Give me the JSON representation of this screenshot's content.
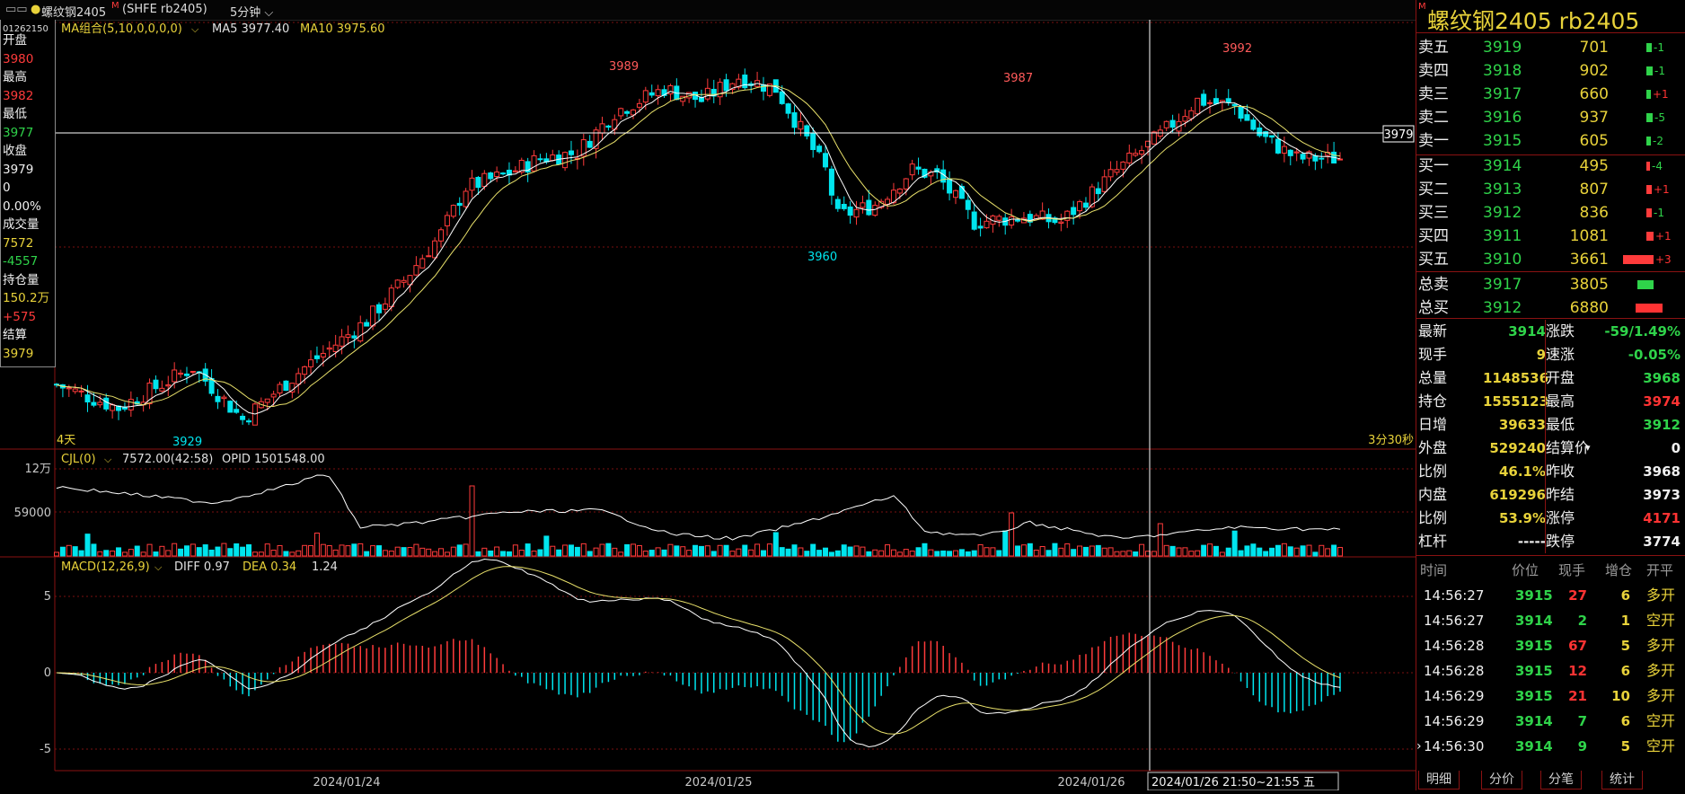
{
  "topbar": {
    "window_icons": "▭▭",
    "symbol": "螺纹钢2405",
    "symbol_mark": "M",
    "code": "(SHFE rb2405)",
    "period": "5分钟"
  },
  "left": {
    "code": "01262150",
    "labels": [
      {
        "t": "开盘",
        "c": "white"
      },
      {
        "t": "3980",
        "c": "red"
      },
      {
        "t": "最高",
        "c": "white"
      },
      {
        "t": "3982",
        "c": "red"
      },
      {
        "t": "最低",
        "c": "white"
      },
      {
        "t": "3977",
        "c": "green"
      },
      {
        "t": "收盘",
        "c": "white"
      },
      {
        "t": "3979",
        "c": "white"
      },
      {
        "t": "0",
        "c": "white"
      },
      {
        "t": "0.00%",
        "c": "white"
      },
      {
        "t": "成交量",
        "c": "white"
      },
      {
        "t": "7572",
        "c": "yellow"
      },
      {
        "t": "-4557",
        "c": "green"
      },
      {
        "t": "持仓量",
        "c": "white"
      },
      {
        "t": "150.2万",
        "c": "yellow"
      },
      {
        "t": "+575",
        "c": "red"
      },
      {
        "t": "结算",
        "c": "white"
      },
      {
        "t": "3979",
        "c": "yellow"
      }
    ]
  },
  "main": {
    "ma_label": "MA组合(5,10,0,0,0,0)",
    "ma5": "MA5  3977.40",
    "ma10": "MA10  3975.60",
    "peaks": [
      "3989",
      "3987",
      "3992"
    ],
    "lows": [
      "3960",
      "3929"
    ],
    "crosshair_price": "3979",
    "days_label": "4天",
    "remain_label": "3分30秒"
  },
  "vol": {
    "label": "CJL(0)",
    "value": "7572.00(42:58)",
    "opid": "OPID  1501548.00",
    "y_labels": [
      "12万",
      "59000"
    ]
  },
  "macd": {
    "label": "MACD(12,26,9)",
    "diff": "DIFF  0.97",
    "dea": "DEA  0.34",
    "val": "1.24",
    "y_labels": [
      "5",
      "0",
      "-5"
    ]
  },
  "xaxis": {
    "dates": [
      "2024/01/24",
      "2024/01/25",
      "2024/01/26"
    ],
    "cursor": "2024/01/26  21:50~21:55  五"
  },
  "right": {
    "title": "螺纹钢2405  rb2405",
    "title_mark": "M",
    "asks": [
      {
        "label": "卖五",
        "price": "3919",
        "vol": "701",
        "chg": "-1",
        "w": 6
      },
      {
        "label": "卖四",
        "price": "3918",
        "vol": "902",
        "chg": "-1",
        "w": 7
      },
      {
        "label": "卖三",
        "price": "3917",
        "vol": "660",
        "chg": "+1",
        "w": 5
      },
      {
        "label": "卖二",
        "price": "3916",
        "vol": "937",
        "chg": "-5",
        "w": 7
      },
      {
        "label": "卖一",
        "price": "3915",
        "vol": "605",
        "chg": "-2",
        "w": 5
      }
    ],
    "bids": [
      {
        "label": "买一",
        "price": "3914",
        "vol": "495",
        "chg": "-4",
        "w": 4
      },
      {
        "label": "买二",
        "price": "3913",
        "vol": "807",
        "chg": "+1",
        "w": 6
      },
      {
        "label": "买三",
        "price": "3912",
        "vol": "836",
        "chg": "-1",
        "w": 6
      },
      {
        "label": "买四",
        "price": "3911",
        "vol": "1081",
        "chg": "+1",
        "w": 8
      },
      {
        "label": "买五",
        "price": "3910",
        "vol": "3661",
        "chg": "+3",
        "w": 34
      }
    ],
    "totals": [
      {
        "label": "总卖",
        "price": "3917",
        "vol": "3805",
        "color": "#2fd34a"
      },
      {
        "label": "总买",
        "price": "3912",
        "vol": "6880",
        "color": "#ff3333"
      }
    ],
    "stats": [
      {
        "l": "最新",
        "v": "3914",
        "vc": "green",
        "l2": "涨跌",
        "v2": "-59/1.49%",
        "v2c": "green"
      },
      {
        "l": "现手",
        "v": "9",
        "vc": "yellow",
        "l2": "速涨",
        "v2": "-0.05%",
        "v2c": "green"
      },
      {
        "l": "总量",
        "v": "1148536",
        "vc": "yellow",
        "l2": "开盘",
        "v2": "3968",
        "v2c": "green"
      },
      {
        "l": "持仓",
        "v": "1555123",
        "vc": "yellow",
        "l2": "最高",
        "v2": "3974",
        "v2c": "red"
      },
      {
        "l": "日增",
        "v": "39633",
        "vc": "yellow",
        "l2": "最低",
        "v2": "3912",
        "v2c": "green"
      },
      {
        "l": "外盘",
        "v": "529240",
        "vc": "yellow",
        "l2": "结算价",
        "v2": "0",
        "v2c": "white"
      },
      {
        "l": "比例",
        "v": "46.1%",
        "vc": "yellow",
        "l2": "昨收",
        "v2": "3968",
        "v2c": "white"
      },
      {
        "l": "内盘",
        "v": "619296",
        "vc": "yellow",
        "l2": "昨结",
        "v2": "3973",
        "v2c": "white"
      },
      {
        "l": "比例",
        "v": "53.9%",
        "vc": "yellow",
        "l2": "涨停",
        "v2": "4171",
        "v2c": "red"
      },
      {
        "l": "杠杆",
        "v": "-----",
        "vc": "white",
        "l2": "跌停",
        "v2": "3774",
        "v2c": "white"
      }
    ],
    "trades_header": [
      "时间",
      "价位",
      "现手",
      "增仓",
      "开平"
    ],
    "trades": [
      {
        "time": "14:56:27",
        "price": "3915",
        "hand": "27",
        "hc": "red",
        "inc": "6",
        "type": "多开",
        "tc": "yellow"
      },
      {
        "time": "14:56:27",
        "price": "3914",
        "hand": "2",
        "hc": "green",
        "inc": "1",
        "type": "空开",
        "tc": "yellow"
      },
      {
        "time": "14:56:28",
        "price": "3915",
        "hand": "67",
        "hc": "red",
        "inc": "5",
        "type": "多开",
        "tc": "yellow"
      },
      {
        "time": "14:56:28",
        "price": "3915",
        "hand": "12",
        "hc": "red",
        "inc": "6",
        "type": "多开",
        "tc": "yellow"
      },
      {
        "time": "14:56:29",
        "price": "3915",
        "hand": "21",
        "hc": "red",
        "inc": "10",
        "type": "多开",
        "tc": "yellow"
      },
      {
        "time": "14:56:29",
        "price": "3914",
        "hand": "7",
        "hc": "green",
        "inc": "6",
        "type": "空开",
        "tc": "yellow"
      },
      {
        "time": "14:56:30",
        "price": "3914",
        "hand": "9",
        "hc": "green",
        "inc": "5",
        "type": "空开",
        "tc": "yellow"
      }
    ],
    "tabs": [
      "明细",
      "分价",
      "分笔",
      "统计"
    ]
  },
  "colors": {
    "up": "#ff3b3b",
    "down": "#00e5ee",
    "ma5": "#ffffff",
    "ma10": "#e8e06a",
    "grid": "#7a1010",
    "text": "#c8c8c8"
  }
}
